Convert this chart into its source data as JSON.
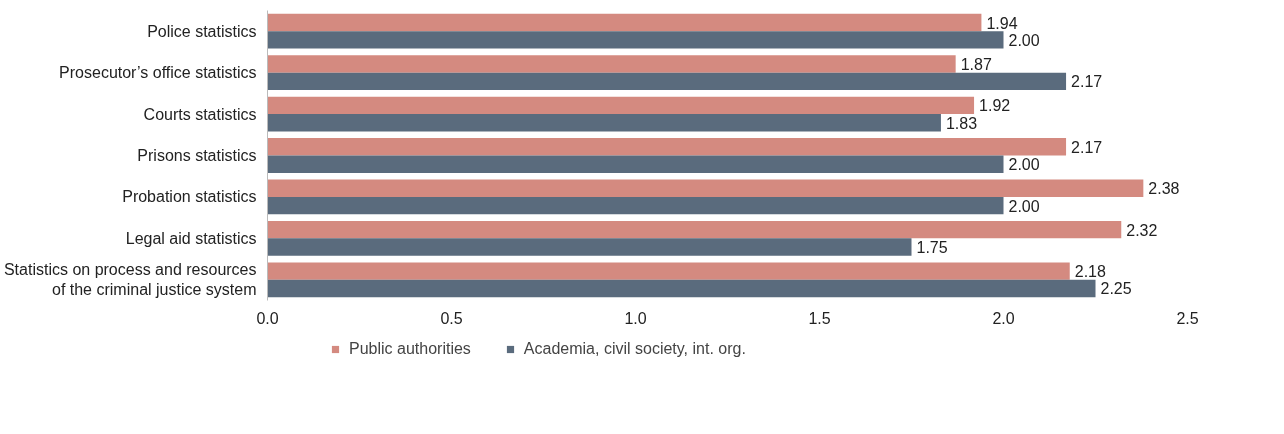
{
  "chart_data": {
    "type": "bar",
    "orientation": "horizontal",
    "categories": [
      "Police statistics",
      "Prosecutor’s office statistics",
      "Courts statistics",
      "Prisons statistics",
      "Probation statistics",
      "Legal aid statistics",
      "Statistics on process and resources\nof the criminal justice system"
    ],
    "series": [
      {
        "name": "Public authorities",
        "color": "#d48a80",
        "values": [
          1.94,
          1.87,
          1.92,
          2.17,
          2.38,
          2.32,
          2.18
        ],
        "value_labels": [
          "1.94",
          "1.87",
          "1.92",
          "2.17",
          "2.38",
          "2.32",
          "2.18"
        ]
      },
      {
        "name": "Academia, civil society, int. org.",
        "color": "#5a6b7d",
        "values": [
          2.0,
          2.17,
          1.83,
          2.0,
          2.0,
          1.75,
          2.25
        ],
        "value_labels": [
          "2.00",
          "2.17",
          "1.83",
          "2.00",
          "2.00",
          "1.75",
          "2.25"
        ]
      }
    ],
    "xlim": [
      0,
      2.5
    ],
    "xticks": [
      {
        "value": 0,
        "label": "0.0"
      },
      0.5,
      {
        "value": 1,
        "label": "1.0"
      },
      1.5,
      {
        "value": 2,
        "label": "2.0"
      },
      2.5
    ],
    "grid": false,
    "legend": "bottom"
  }
}
